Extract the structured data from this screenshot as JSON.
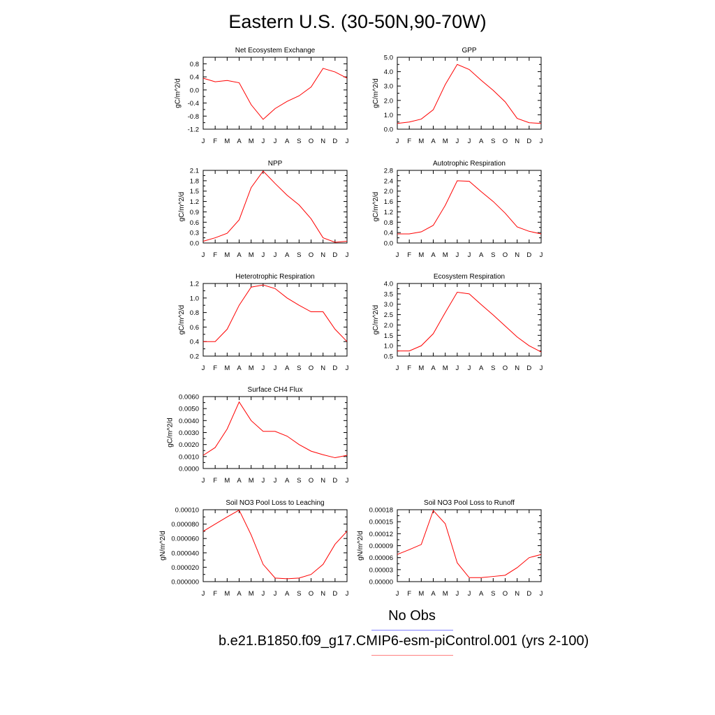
{
  "page": {
    "title": "Eastern U.S. (30-50N,90-70W)"
  },
  "legend": {
    "obs_label": "No Obs",
    "case_label": "b.e21.B1850.f09_g17.CMIP6-esm-piControl.001 (yrs 2-100)",
    "obs_color": "#7f7fff",
    "case_color": "#ff8080"
  },
  "colors": {
    "line": "#ff0000",
    "axis": "#000000"
  },
  "chart_data": [
    {
      "type": "line",
      "title": "Net Ecosystem Exchange",
      "ylabel": "gC/m^2/d",
      "categories": [
        "J",
        "F",
        "M",
        "A",
        "M",
        "J",
        "J",
        "A",
        "S",
        "O",
        "N",
        "D",
        "J"
      ],
      "ylim": [
        -1.2,
        1.0
      ],
      "yticks": [
        "0.8",
        "0.4",
        "0.0",
        "-0.4",
        "-0.8",
        "-1.2"
      ],
      "ytick_values": [
        0.8,
        0.4,
        0.0,
        -0.4,
        -0.8,
        -1.2
      ],
      "series": [
        {
          "values": [
            0.36,
            0.25,
            0.29,
            0.22,
            -0.45,
            -0.9,
            -0.57,
            -0.35,
            -0.18,
            0.09,
            0.66,
            0.55,
            0.36
          ]
        }
      ]
    },
    {
      "type": "line",
      "title": "GPP",
      "ylabel": "gC/m^2/d",
      "categories": [
        "J",
        "F",
        "M",
        "A",
        "M",
        "J",
        "J",
        "A",
        "S",
        "O",
        "N",
        "D",
        "J"
      ],
      "ylim": [
        0.0,
        5.0
      ],
      "yticks": [
        "5.0",
        "4.0",
        "3.0",
        "2.0",
        "1.0",
        "0.0"
      ],
      "ytick_values": [
        5.0,
        4.0,
        3.0,
        2.0,
        1.0,
        0.0
      ],
      "series": [
        {
          "values": [
            0.4,
            0.5,
            0.7,
            1.35,
            3.1,
            4.5,
            4.15,
            3.4,
            2.7,
            1.9,
            0.75,
            0.45,
            0.4
          ]
        }
      ]
    },
    {
      "type": "line",
      "title": "NPP",
      "ylabel": "gC/m^2/d",
      "categories": [
        "J",
        "F",
        "M",
        "A",
        "M",
        "J",
        "J",
        "A",
        "S",
        "O",
        "N",
        "D",
        "J"
      ],
      "ylim": [
        0.0,
        2.1
      ],
      "yticks": [
        "2.1",
        "1.8",
        "1.5",
        "1.2",
        "0.9",
        "0.6",
        "0.3",
        "0.0"
      ],
      "ytick_values": [
        2.1,
        1.8,
        1.5,
        1.2,
        0.9,
        0.6,
        0.3,
        0.0
      ],
      "series": [
        {
          "values": [
            0.05,
            0.15,
            0.28,
            0.67,
            1.6,
            2.08,
            1.72,
            1.38,
            1.1,
            0.7,
            0.15,
            0.02,
            0.05
          ]
        }
      ]
    },
    {
      "type": "line",
      "title": "Autotrophic Respiration",
      "ylabel": "gC/m^2/d",
      "categories": [
        "J",
        "F",
        "M",
        "A",
        "M",
        "J",
        "J",
        "A",
        "S",
        "O",
        "N",
        "D",
        "J"
      ],
      "ylim": [
        0.0,
        2.8
      ],
      "yticks": [
        "2.8",
        "2.4",
        "2.0",
        "1.6",
        "1.2",
        "0.8",
        "0.4",
        "0.0"
      ],
      "ytick_values": [
        2.8,
        2.4,
        2.0,
        1.6,
        1.2,
        0.8,
        0.4,
        0.0
      ],
      "series": [
        {
          "values": [
            0.35,
            0.35,
            0.43,
            0.68,
            1.45,
            2.4,
            2.38,
            1.98,
            1.6,
            1.15,
            0.62,
            0.45,
            0.35
          ]
        }
      ]
    },
    {
      "type": "line",
      "title": "Heterotrophic Respiration",
      "ylabel": "gC/m^2/d",
      "categories": [
        "J",
        "F",
        "M",
        "A",
        "M",
        "J",
        "J",
        "A",
        "S",
        "O",
        "N",
        "D",
        "J"
      ],
      "ylim": [
        0.2,
        1.2
      ],
      "yticks": [
        "1.2",
        "1.0",
        "0.8",
        "0.6",
        "0.4",
        "0.2"
      ],
      "ytick_values": [
        1.2,
        1.0,
        0.8,
        0.6,
        0.4,
        0.2
      ],
      "series": [
        {
          "values": [
            0.4,
            0.4,
            0.57,
            0.9,
            1.15,
            1.18,
            1.13,
            1.0,
            0.9,
            0.81,
            0.81,
            0.57,
            0.4
          ]
        }
      ]
    },
    {
      "type": "line",
      "title": "Ecosystem Respiration",
      "ylabel": "gC/m^2/d",
      "categories": [
        "J",
        "F",
        "M",
        "A",
        "M",
        "J",
        "J",
        "A",
        "S",
        "O",
        "N",
        "D",
        "J"
      ],
      "ylim": [
        0.5,
        4.0
      ],
      "yticks": [
        "4.0",
        "3.5",
        "3.0",
        "2.5",
        "2.0",
        "1.5",
        "1.0",
        "0.5"
      ],
      "ytick_values": [
        4.0,
        3.5,
        3.0,
        2.5,
        2.0,
        1.5,
        1.0,
        0.5
      ],
      "series": [
        {
          "values": [
            0.75,
            0.75,
            1.0,
            1.58,
            2.6,
            3.58,
            3.5,
            2.98,
            2.48,
            1.95,
            1.42,
            1.0,
            0.7
          ]
        }
      ]
    },
    {
      "type": "line",
      "title": "Surface CH4 Flux",
      "ylabel": "gC/m^2/d",
      "categories": [
        "J",
        "F",
        "M",
        "A",
        "M",
        "J",
        "J",
        "A",
        "S",
        "O",
        "N",
        "D",
        "J"
      ],
      "ylim": [
        0.0,
        0.006
      ],
      "yticks": [
        "0.0060",
        "0.0050",
        "0.0040",
        "0.0030",
        "0.0020",
        "0.0010",
        "0.0000"
      ],
      "ytick_values": [
        0.006,
        0.005,
        0.004,
        0.003,
        0.002,
        0.001,
        0.0
      ],
      "series": [
        {
          "values": [
            0.0011,
            0.00175,
            0.0033,
            0.00555,
            0.004,
            0.0031,
            0.0031,
            0.0027,
            0.002,
            0.00145,
            0.00115,
            0.0009,
            0.0011
          ]
        }
      ]
    },
    null,
    {
      "type": "line",
      "title": "Soil NO3 Pool Loss to Leaching",
      "ylabel": "gN/m^2/d",
      "categories": [
        "J",
        "F",
        "M",
        "A",
        "M",
        "J",
        "J",
        "A",
        "S",
        "O",
        "N",
        "D",
        "J"
      ],
      "ylim": [
        0.0,
        0.0001
      ],
      "yticks": [
        "0.00010",
        "0.000080",
        "0.000060",
        "0.000040",
        "0.000020",
        "0.000000"
      ],
      "ytick_values": [
        0.0001,
        8e-05,
        6e-05,
        4e-05,
        2e-05,
        0.0
      ],
      "series": [
        {
          "values": [
            7e-05,
            8e-05,
            9e-05,
            9.95e-05,
            6.5e-05,
            2.4e-05,
            5e-06,
            4e-06,
            5e-06,
            1e-05,
            2.4e-05,
            5.2e-05,
            7e-05
          ]
        }
      ]
    },
    {
      "type": "line",
      "title": "Soil NO3 Pool Loss to Runoff",
      "ylabel": "gN/m^2/d",
      "categories": [
        "J",
        "F",
        "M",
        "A",
        "M",
        "J",
        "J",
        "A",
        "S",
        "O",
        "N",
        "D",
        "J"
      ],
      "ylim": [
        0.0,
        0.00018
      ],
      "yticks": [
        "0.00018",
        "0.00015",
        "0.00012",
        "0.00009",
        "0.00006",
        "0.00003",
        "0.00000"
      ],
      "ytick_values": [
        0.00018,
        0.00015,
        0.00012,
        9e-05,
        6e-05,
        3e-05,
        0.0
      ],
      "series": [
        {
          "values": [
            6.8e-05,
            8e-05,
            9.3e-05,
            0.000178,
            0.000145,
            4.7e-05,
            1e-05,
            1e-05,
            1.3e-05,
            1.6e-05,
            3.5e-05,
            6e-05,
            6.8e-05
          ]
        }
      ]
    }
  ]
}
